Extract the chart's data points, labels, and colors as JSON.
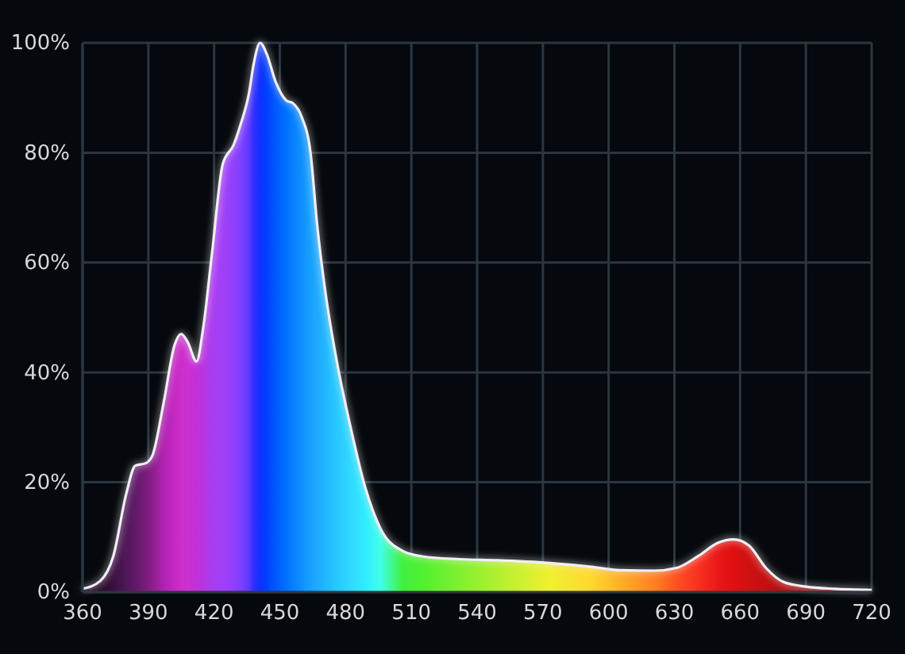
{
  "chart_data": {
    "type": "area",
    "x": [
      360,
      368,
      374,
      380,
      384,
      389,
      392,
      397,
      402,
      405,
      408,
      412,
      415,
      419,
      424,
      429,
      432,
      436,
      438,
      441,
      444,
      448,
      453,
      456,
      460,
      464,
      467,
      471,
      476,
      482,
      489,
      496,
      506,
      515,
      532,
      549,
      573,
      592,
      605,
      621,
      631,
      641,
      650,
      657,
      664,
      672,
      680,
      690,
      703,
      720
    ],
    "series": [
      {
        "color": "#f0eef4",
        "values": [
          0.6,
          2,
          6.5,
          18,
          23,
          23.5,
          25,
          34.5,
          45,
          47,
          45.5,
          42,
          48,
          61.5,
          78,
          81.5,
          85,
          91,
          96,
          100,
          98,
          93,
          89.5,
          89,
          86.5,
          80,
          67,
          54,
          42,
          30.5,
          19,
          11.5,
          7.5,
          6.5,
          6,
          5.8,
          5.3,
          4.6,
          4,
          3.9,
          4.4,
          6.6,
          9,
          9.6,
          8.5,
          4.3,
          1.8,
          1,
          0.6,
          0.4
        ],
        "colors": [
          "#1a0818",
          "#2a0c2a",
          "#3a1040",
          "#501858",
          "#601a68",
          "#7a1c7a",
          "#8c1e8c",
          "#b022b0",
          "#c428c4",
          "#cc2ecc",
          "#cc30d0",
          "#c030d8",
          "#b834e0",
          "#aa3cf0",
          "#a040f8",
          "#9040fc",
          "#8040ff",
          "#6038ff",
          "#3030ff",
          "#1030ff",
          "#0040ff",
          "#0058ff",
          "#0070ff",
          "#0880ff",
          "#1090ff",
          "#18a0ff",
          "#20a8ff",
          "#20b8ff",
          "#28c8ff",
          "#30d8ff",
          "#30ecff",
          "#40ffe8",
          "#40f040",
          "#50f030",
          "#80f030",
          "#b0f030",
          "#f0f030",
          "#ffd830",
          "#ffb028",
          "#ff8020",
          "#ff5020",
          "#f83020",
          "#e81818",
          "#e01010",
          "#d01010",
          "#c01010",
          "#b01010",
          "#981010",
          "#801010",
          "#601010"
        ]
      }
    ],
    "xlim": [
      360,
      720
    ],
    "xticks": [
      360,
      390,
      420,
      450,
      480,
      510,
      540,
      570,
      600,
      630,
      660,
      690,
      720
    ],
    "ylim": [
      0,
      100
    ],
    "yticks": [
      {
        "value": 0,
        "label": "0%"
      },
      {
        "value": 20,
        "label": "20%"
      },
      {
        "value": 40,
        "label": "40%"
      },
      {
        "value": 60,
        "label": "60%"
      },
      {
        "value": 80,
        "label": "80%"
      },
      {
        "value": 100,
        "label": "100%"
      }
    ],
    "grid": true
  }
}
